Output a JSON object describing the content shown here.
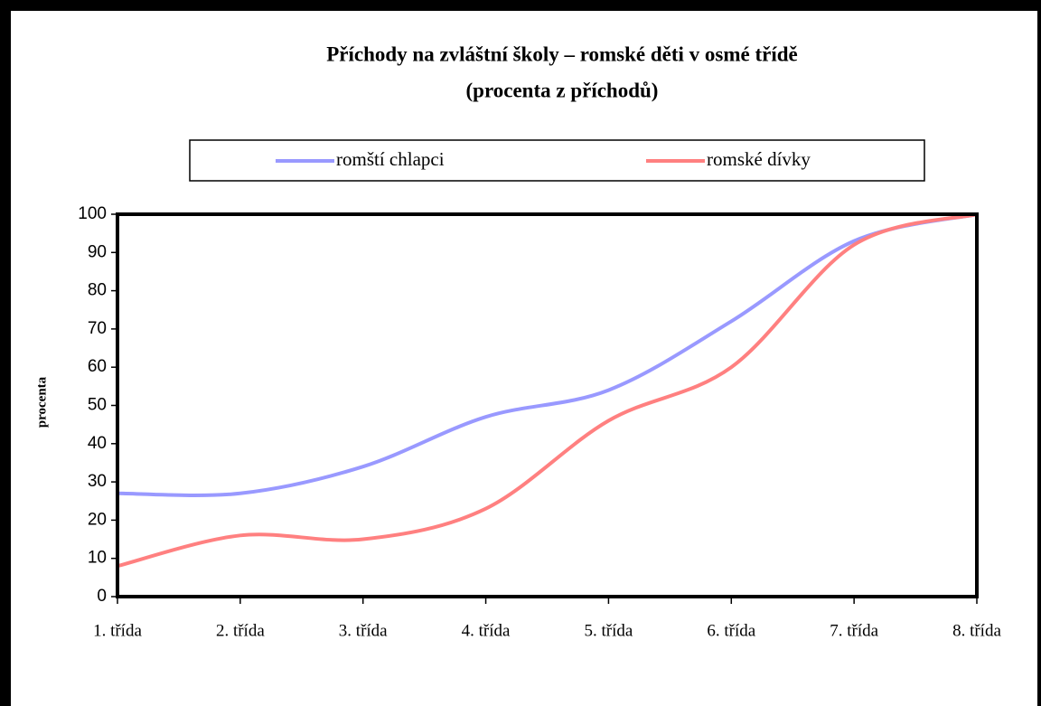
{
  "chart_data": {
    "type": "line",
    "title": [
      "Příchody na zvláštní školy – romské děti v osmé třídě",
      "(procenta z příchodů)"
    ],
    "y_label": "procenta",
    "categories": [
      "1. třída",
      "2. třída",
      "3. třída",
      "4. třída",
      "5. třída",
      "6. třída",
      "7. třída",
      "8. třída"
    ],
    "series": [
      {
        "name": "romští chlapci",
        "color": "#9999ff",
        "values": [
          27,
          27,
          34,
          47,
          54,
          72,
          93,
          100
        ]
      },
      {
        "name": "romské dívky",
        "color": "#ff8080",
        "values": [
          8,
          16,
          15,
          23,
          46,
          60,
          92,
          100
        ]
      }
    ],
    "ylim": [
      0,
      100
    ],
    "yticks": [
      0,
      10,
      20,
      30,
      40,
      50,
      60,
      70,
      80,
      90,
      100
    ],
    "smooth": true,
    "legend": "top"
  }
}
